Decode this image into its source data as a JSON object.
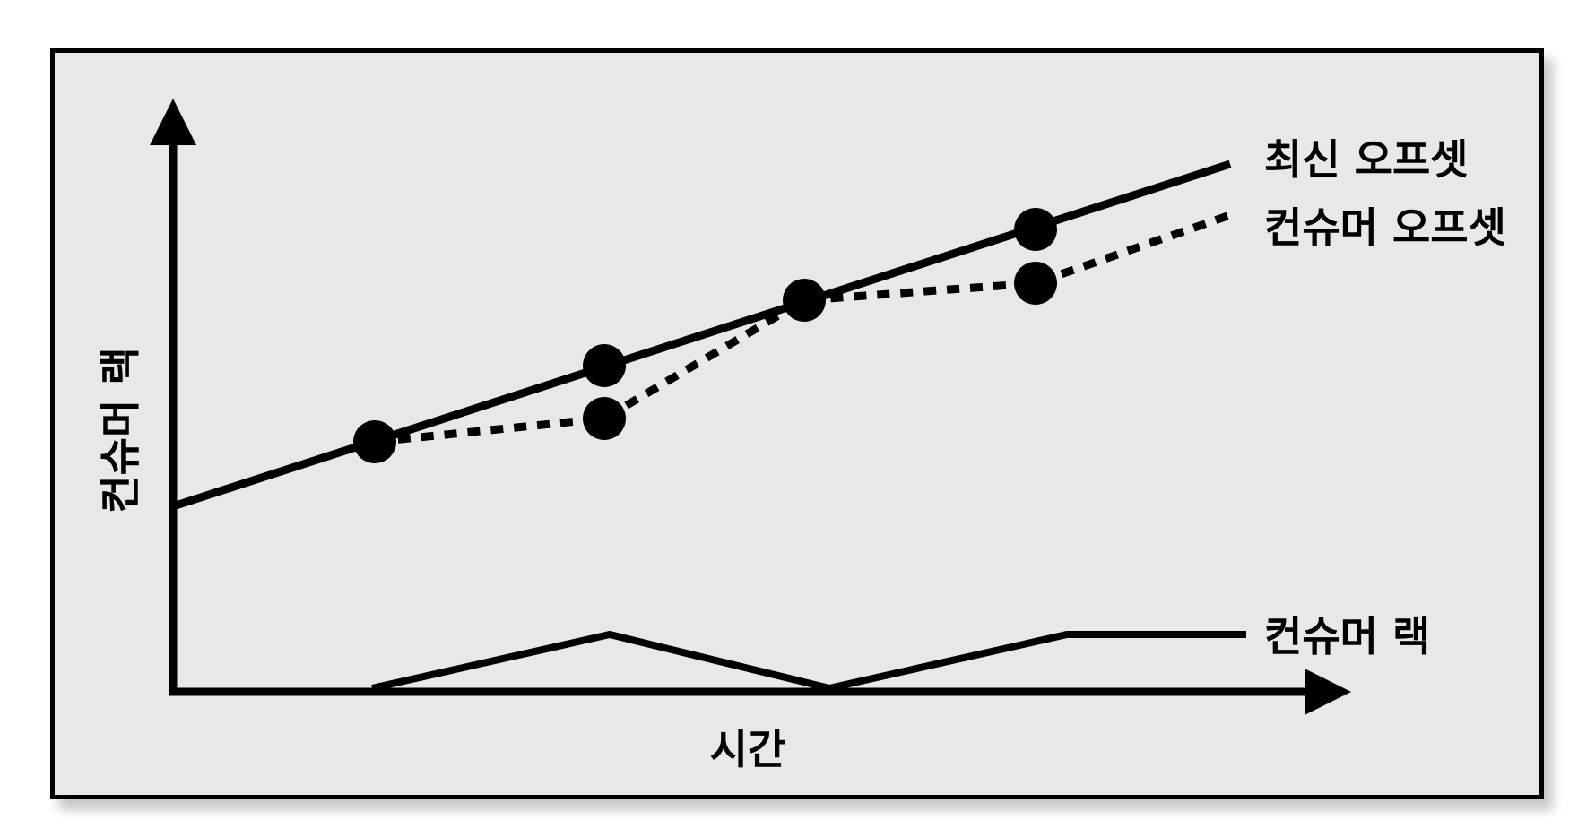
{
  "labels": {
    "latest_offset": "최신 오프셋",
    "consumer_offset": "컨슈머 오프셋",
    "consumer_lag": "컨슈머 랙",
    "y_axis": "컨슈머 랙",
    "x_axis": "시간"
  },
  "styles": {
    "background": "#e8e8e8",
    "stroke": "#000000"
  }
}
